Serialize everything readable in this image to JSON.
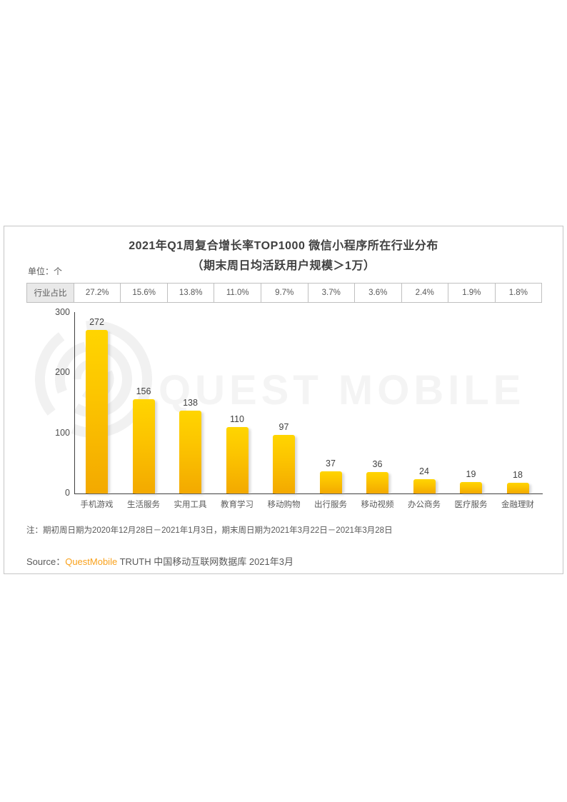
{
  "page": {
    "title_line1": "2021年Q1周复合增长率TOP1000 微信小程序所在行业分布",
    "title_line2": "（期末周日均活跃用户规模＞1万）",
    "unit_label": "单位：个",
    "note": "注：期初周日期为2020年12月28日－2021年1月3日，期末周日期为2021年3月22日－2021年3月28日",
    "source_prefix": "Source：",
    "source_brand": "QuestMobile",
    "source_suffix": " TRUTH 中国移动互联网数据库 2021年3月",
    "watermark_text": "QUEST MOBILE"
  },
  "share_table": {
    "header": "行业占比",
    "values": [
      "27.2%",
      "15.6%",
      "13.8%",
      "11.0%",
      "9.7%",
      "3.7%",
      "3.6%",
      "2.4%",
      "1.9%",
      "1.8%"
    ]
  },
  "chart_data": {
    "type": "bar",
    "title": "2021年Q1周复合增长率TOP1000 微信小程序所在行业分布",
    "subtitle": "（期末周日均活跃用户规模＞1万）",
    "unit": "单位：个",
    "categories": [
      "手机游戏",
      "生活服务",
      "实用工具",
      "教育学习",
      "移动购物",
      "出行服务",
      "移动视频",
      "办公商务",
      "医疗服务",
      "金融理财"
    ],
    "values": [
      272,
      156,
      138,
      110,
      97,
      37,
      36,
      24,
      19,
      18
    ],
    "share_percent": [
      "27.2%",
      "15.6%",
      "13.8%",
      "11.0%",
      "9.7%",
      "3.7%",
      "3.6%",
      "2.4%",
      "1.9%",
      "1.8%"
    ],
    "yticks": [
      0,
      100,
      200,
      300
    ],
    "ylim": [
      0,
      300
    ],
    "xlabel": "",
    "ylabel": "个",
    "grid": false,
    "legend_position": "none",
    "bar_color_top": "#FFD500",
    "bar_color_bottom": "#F3A900",
    "value_labels_shown": true
  },
  "colors": {
    "bar_top": "#FFD500",
    "bar_bottom": "#F3A900",
    "title_text": "#3F3F3F",
    "axis_text": "#4D4D4D",
    "body_text": "#595959",
    "brand_orange": "#F9A11B",
    "table_border": "#BFBFBF",
    "table_header_bg": "#E9E9E9",
    "panel_border": "#C6C6C6",
    "watermark": "#F4F4F4"
  }
}
